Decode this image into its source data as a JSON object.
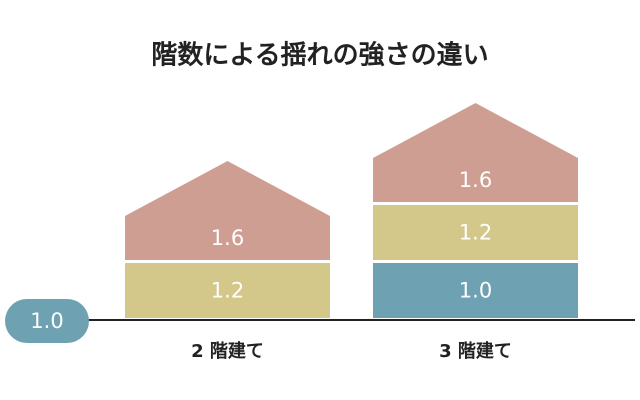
{
  "title": "階数による揺れの強さの違い",
  "ground": {
    "label": "1.0",
    "color": "#6ea2b2"
  },
  "buildings": [
    {
      "label": "2 階建て",
      "floors": [
        {
          "label": "1.2",
          "color": "#d3c889"
        },
        {
          "label": "1.6",
          "color": "#cf9e92"
        }
      ]
    },
    {
      "label": "3 階建て",
      "floors": [
        {
          "label": "1.0",
          "color": "#6ea2b2"
        },
        {
          "label": "1.2",
          "color": "#d3c889"
        },
        {
          "label": "1.6",
          "color": "#cf9e92"
        }
      ]
    }
  ]
}
